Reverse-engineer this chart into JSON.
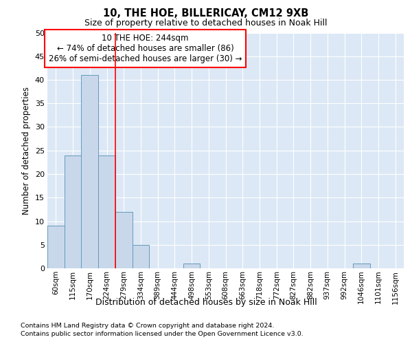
{
  "title1": "10, THE HOE, BILLERICAY, CM12 9XB",
  "title2": "Size of property relative to detached houses in Noak Hill",
  "xlabel": "Distribution of detached houses by size in Noak Hill",
  "ylabel": "Number of detached properties",
  "bin_labels": [
    "60sqm",
    "115sqm",
    "170sqm",
    "224sqm",
    "279sqm",
    "334sqm",
    "389sqm",
    "444sqm",
    "498sqm",
    "553sqm",
    "608sqm",
    "663sqm",
    "718sqm",
    "772sqm",
    "827sqm",
    "882sqm",
    "937sqm",
    "992sqm",
    "1046sqm",
    "1101sqm",
    "1156sqm"
  ],
  "bar_values": [
    9,
    24,
    41,
    24,
    12,
    5,
    0,
    0,
    1,
    0,
    0,
    0,
    0,
    0,
    0,
    0,
    0,
    0,
    1,
    0,
    0
  ],
  "bar_color": "#c8d8ea",
  "bar_edgecolor": "#6699bb",
  "background_color": "#dce8f5",
  "grid_color": "#ffffff",
  "red_line_x": 3.5,
  "annotation_title": "10 THE HOE: 244sqm",
  "annotation_line1": "← 74% of detached houses are smaller (86)",
  "annotation_line2": "26% of semi-detached houses are larger (30) →",
  "ylim": [
    0,
    50
  ],
  "yticks": [
    0,
    5,
    10,
    15,
    20,
    25,
    30,
    35,
    40,
    45,
    50
  ],
  "footer1": "Contains HM Land Registry data © Crown copyright and database right 2024.",
  "footer2": "Contains public sector information licensed under the Open Government Licence v3.0."
}
